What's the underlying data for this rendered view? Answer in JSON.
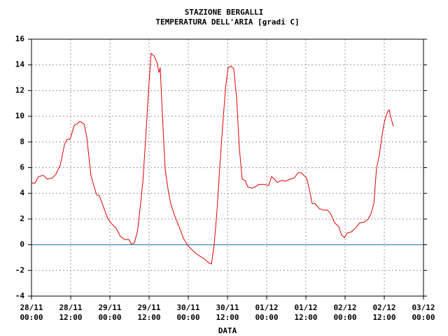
{
  "chart_data": {
    "type": "line",
    "title": "STAZIONE BERGALLI",
    "subtitle": "TEMPERATURA DELL'ARIA [gradi C]",
    "x_label": "DATA",
    "xlim": [
      0,
      120
    ],
    "xticks": [
      {
        "value": 0,
        "label": "28/11 00:00"
      },
      {
        "value": 12,
        "label": "28/11 12:00"
      },
      {
        "value": 24,
        "label": "29/11 00:00"
      },
      {
        "value": 36,
        "label": "29/11 12:00"
      },
      {
        "value": 48,
        "label": "30/11 00:00"
      },
      {
        "value": 60,
        "label": "30/11 12:00"
      },
      {
        "value": 72,
        "label": "01/12 00:00"
      },
      {
        "value": 84,
        "label": "01/12 12:00"
      },
      {
        "value": 96,
        "label": "02/12 00:00"
      },
      {
        "value": 108,
        "label": "02/12 12:00"
      },
      {
        "value": 120,
        "label": "03/12 00:00"
      }
    ],
    "ylim": [
      -4,
      16
    ],
    "yticks": [
      -4,
      -2,
      0,
      2,
      4,
      6,
      8,
      10,
      12,
      14,
      16
    ],
    "grid": true,
    "reference_line": {
      "value": 0,
      "color": "#1f77b4"
    },
    "x": [
      0,
      1.1,
      2.1,
      3.6,
      4.9,
      6.4,
      7.5,
      8.8,
      10.1,
      10.9,
      11.8,
      13.1,
      13.9,
      14.8,
      16.1,
      16.9,
      18.2,
      19.1,
      19.9,
      20.8,
      22.1,
      23.4,
      24.6,
      25.9,
      27.2,
      28.5,
      29.8,
      30.6,
      31.5,
      32.4,
      33.2,
      34.1,
      34.9,
      35.8,
      36.6,
      37.5,
      38.4,
      39.0,
      39.4,
      40.1,
      40.9,
      41.8,
      42.6,
      43.9,
      45.2,
      46.5,
      47.8,
      49.1,
      50.4,
      51.6,
      52.9,
      54.2,
      55.1,
      55.9,
      56.8,
      57.6,
      58.5,
      59.4,
      60.2,
      61.1,
      61.9,
      62.8,
      63.6,
      64.5,
      65.4,
      66.2,
      67.5,
      68.4,
      69.6,
      71.4,
      72.6,
      73.5,
      74.4,
      75.2,
      76.5,
      77.8,
      79.1,
      80.4,
      81.6,
      82.5,
      83.4,
      84.2,
      85.1,
      85.9,
      86.8,
      88.1,
      89.4,
      90.6,
      91.5,
      92.8,
      94.1,
      94.9,
      95.8,
      96.6,
      97.9,
      99.2,
      100.5,
      101.8,
      103.1,
      103.9,
      104.8,
      105.6,
      106.5,
      107.4,
      108.2,
      109.1,
      109.5,
      109.9,
      110.8
    ],
    "series": [
      {
        "name": "temperatura",
        "color": "#dd0000",
        "values": [
          4.8,
          4.8,
          5.3,
          5.4,
          5.1,
          5.2,
          5.5,
          6.2,
          7.8,
          8.2,
          8.2,
          9.3,
          9.4,
          9.6,
          9.4,
          8.4,
          5.4,
          4.6,
          3.9,
          3.8,
          2.9,
          2.0,
          1.6,
          1.3,
          0.65,
          0.4,
          0.4,
          0.05,
          0.15,
          1.0,
          2.7,
          4.9,
          8.1,
          11.9,
          14.9,
          14.7,
          14.2,
          13.4,
          13.8,
          10.0,
          5.9,
          4.3,
          3.2,
          2.2,
          1.4,
          0.5,
          -0.05,
          -0.4,
          -0.7,
          -0.9,
          -1.1,
          -1.4,
          -1.5,
          -0.05,
          2.7,
          5.9,
          9.2,
          12.2,
          13.8,
          13.9,
          13.7,
          11.4,
          7.6,
          5.1,
          5.0,
          4.5,
          4.4,
          4.5,
          4.7,
          4.7,
          4.6,
          5.3,
          5.1,
          4.85,
          5.0,
          4.95,
          5.1,
          5.2,
          5.6,
          5.6,
          5.4,
          5.2,
          4.3,
          3.2,
          3.2,
          2.8,
          2.7,
          2.7,
          2.45,
          1.7,
          1.4,
          0.75,
          0.55,
          0.9,
          1.0,
          1.3,
          1.7,
          1.75,
          2.0,
          2.4,
          3.2,
          5.9,
          7.0,
          8.7,
          9.75,
          10.4,
          10.5,
          10.0,
          9.2
        ]
      }
    ]
  }
}
